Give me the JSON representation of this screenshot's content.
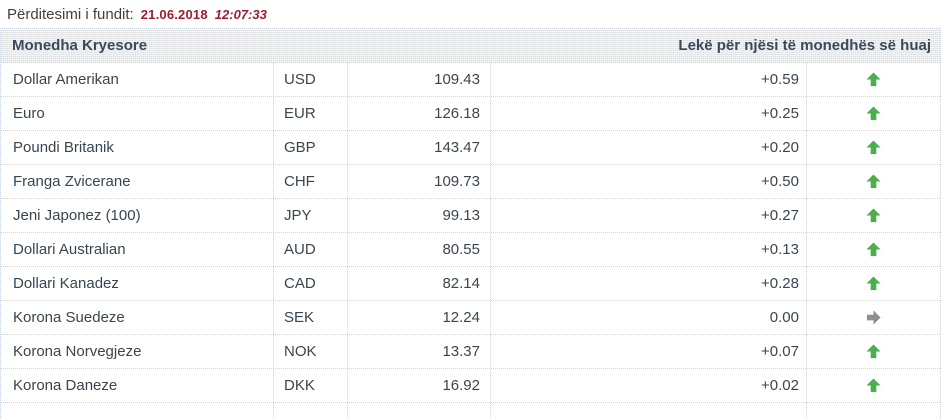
{
  "update": {
    "label": "Përditesimi i fundit:",
    "date": "21.06.2018",
    "time": "12:07:33"
  },
  "table": {
    "header_left": "Monedha Kryesore",
    "header_right": "Lekë për njësi të monedhës së huaj",
    "rows": [
      {
        "name": "Dollar Amerikan",
        "code": "USD",
        "rate": "109.43",
        "change": "+0.59",
        "direction": "up"
      },
      {
        "name": "Euro",
        "code": "EUR",
        "rate": "126.18",
        "change": "+0.25",
        "direction": "up"
      },
      {
        "name": "Poundi Britanik",
        "code": "GBP",
        "rate": "143.47",
        "change": "+0.20",
        "direction": "up"
      },
      {
        "name": "Franga Zvicerane",
        "code": "CHF",
        "rate": "109.73",
        "change": "+0.50",
        "direction": "up"
      },
      {
        "name": "Jeni Japonez (100)",
        "code": "JPY",
        "rate": "99.13",
        "change": "+0.27",
        "direction": "up"
      },
      {
        "name": "Dollari Australian",
        "code": "AUD",
        "rate": "80.55",
        "change": "+0.13",
        "direction": "up"
      },
      {
        "name": "Dollari Kanadez",
        "code": "CAD",
        "rate": "82.14",
        "change": "+0.28",
        "direction": "up"
      },
      {
        "name": "Korona Suedeze",
        "code": "SEK",
        "rate": "12.24",
        "change": "0.00",
        "direction": "flat"
      },
      {
        "name": "Korona Norvegjeze",
        "code": "NOK",
        "rate": "13.37",
        "change": "+0.07",
        "direction": "up"
      },
      {
        "name": "Korona Daneze",
        "code": "DKK",
        "rate": "16.92",
        "change": "+0.02",
        "direction": "up"
      }
    ]
  },
  "colors": {
    "up_arrow": "#4cae4f",
    "flat_arrow": "#8e8e8e",
    "date_text": "#9e1b32",
    "header_text": "#3b4a59",
    "body_text": "#39454f",
    "header_bg": "#e8eaec",
    "border": "#c6d0da"
  }
}
